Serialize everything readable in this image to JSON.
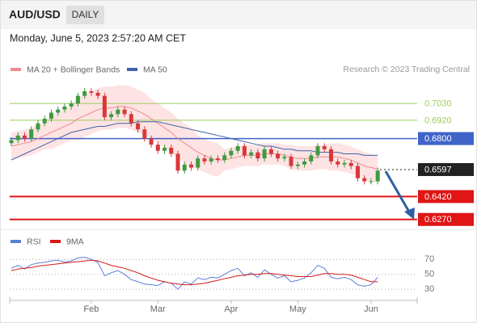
{
  "header": {
    "symbol": "AUD/USD",
    "timeframe": "DAILY",
    "date": "Monday, June 5, 2023 2:57:20 AM CET"
  },
  "chart_data": [
    {
      "type": "candlestick",
      "source": "Research © 2023 Trading Central",
      "ylim": [
        0.62,
        0.72
      ],
      "up_color": "#3f9a3f",
      "down_color": "#d8383a",
      "open": [
        0.677,
        0.679,
        0.682,
        0.68,
        0.686,
        0.69,
        0.693,
        0.697,
        0.699,
        0.701,
        0.703,
        0.708,
        0.711,
        0.71,
        0.708,
        0.694,
        0.696,
        0.699,
        0.696,
        0.69,
        0.686,
        0.68,
        0.676,
        0.672,
        0.674,
        0.67,
        0.659,
        0.663,
        0.661,
        0.667,
        0.665,
        0.667,
        0.666,
        0.669,
        0.672,
        0.675,
        0.669,
        0.671,
        0.667,
        0.673,
        0.67,
        0.667,
        0.668,
        0.662,
        0.663,
        0.665,
        0.669,
        0.675,
        0.673,
        0.665,
        0.663,
        0.664,
        0.662,
        0.654,
        0.652,
        0.652
      ],
      "high": [
        0.681,
        0.684,
        0.684,
        0.688,
        0.692,
        0.695,
        0.699,
        0.701,
        0.703,
        0.705,
        0.71,
        0.713,
        0.713,
        0.712,
        0.71,
        0.698,
        0.701,
        0.701,
        0.698,
        0.692,
        0.688,
        0.682,
        0.678,
        0.676,
        0.676,
        0.672,
        0.665,
        0.665,
        0.669,
        0.669,
        0.669,
        0.669,
        0.671,
        0.674,
        0.677,
        0.677,
        0.673,
        0.673,
        0.675,
        0.675,
        0.672,
        0.67,
        0.67,
        0.665,
        0.667,
        0.671,
        0.677,
        0.677,
        0.675,
        0.667,
        0.666,
        0.666,
        0.664,
        0.656,
        0.654,
        0.661
      ],
      "low": [
        0.675,
        0.677,
        0.678,
        0.678,
        0.684,
        0.688,
        0.691,
        0.695,
        0.697,
        0.699,
        0.701,
        0.706,
        0.708,
        0.706,
        0.692,
        0.692,
        0.694,
        0.694,
        0.688,
        0.684,
        0.678,
        0.674,
        0.67,
        0.67,
        0.668,
        0.657,
        0.657,
        0.659,
        0.659,
        0.663,
        0.663,
        0.664,
        0.664,
        0.667,
        0.67,
        0.667,
        0.667,
        0.665,
        0.665,
        0.668,
        0.665,
        0.665,
        0.66,
        0.66,
        0.661,
        0.663,
        0.667,
        0.671,
        0.663,
        0.661,
        0.661,
        0.66,
        0.652,
        0.65,
        0.65,
        0.65
      ],
      "close": [
        0.679,
        0.682,
        0.68,
        0.686,
        0.69,
        0.693,
        0.697,
        0.699,
        0.701,
        0.703,
        0.708,
        0.711,
        0.71,
        0.708,
        0.694,
        0.696,
        0.699,
        0.696,
        0.69,
        0.686,
        0.68,
        0.676,
        0.672,
        0.674,
        0.67,
        0.659,
        0.663,
        0.661,
        0.667,
        0.665,
        0.667,
        0.666,
        0.669,
        0.672,
        0.675,
        0.669,
        0.671,
        0.667,
        0.673,
        0.67,
        0.667,
        0.668,
        0.662,
        0.663,
        0.665,
        0.669,
        0.675,
        0.673,
        0.665,
        0.663,
        0.664,
        0.662,
        0.654,
        0.652,
        0.652,
        0.659
      ],
      "series": [
        {
          "name": "MA 20 + Bollinger Bands",
          "color": "#f08a8a",
          "band_color": "#fde3e3",
          "values": [
            0.675,
            0.676,
            0.677,
            0.678,
            0.68,
            0.682,
            0.684,
            0.686,
            0.688,
            0.69,
            0.693,
            0.695,
            0.697,
            0.699,
            0.7,
            0.7,
            0.701,
            0.701,
            0.7,
            0.698,
            0.696,
            0.693,
            0.69,
            0.687,
            0.684,
            0.68,
            0.677,
            0.674,
            0.671,
            0.669,
            0.667,
            0.666,
            0.666,
            0.667,
            0.668,
            0.669,
            0.669,
            0.669,
            0.67,
            0.67,
            0.67,
            0.669,
            0.668,
            0.667,
            0.667,
            0.667,
            0.668,
            0.668,
            0.668,
            0.668,
            0.667,
            0.666,
            0.664,
            0.662,
            0.661,
            0.66
          ],
          "upper": [
            0.684,
            0.685,
            0.686,
            0.687,
            0.689,
            0.691,
            0.695,
            0.697,
            0.699,
            0.701,
            0.707,
            0.709,
            0.711,
            0.713,
            0.714,
            0.714,
            0.715,
            0.715,
            0.714,
            0.712,
            0.71,
            0.706,
            0.703,
            0.7,
            0.697,
            0.693,
            0.69,
            0.687,
            0.682,
            0.68,
            0.678,
            0.677,
            0.673,
            0.674,
            0.675,
            0.676,
            0.676,
            0.676,
            0.677,
            0.677,
            0.677,
            0.676,
            0.676,
            0.675,
            0.675,
            0.675,
            0.676,
            0.676,
            0.677,
            0.677,
            0.676,
            0.675,
            0.673,
            0.671,
            0.67,
            0.669
          ],
          "lower": [
            0.666,
            0.667,
            0.668,
            0.669,
            0.671,
            0.673,
            0.673,
            0.675,
            0.677,
            0.679,
            0.679,
            0.681,
            0.683,
            0.685,
            0.686,
            0.686,
            0.687,
            0.687,
            0.686,
            0.684,
            0.682,
            0.68,
            0.677,
            0.674,
            0.671,
            0.667,
            0.664,
            0.661,
            0.66,
            0.658,
            0.656,
            0.655,
            0.659,
            0.66,
            0.661,
            0.662,
            0.662,
            0.662,
            0.663,
            0.663,
            0.663,
            0.662,
            0.66,
            0.659,
            0.659,
            0.659,
            0.66,
            0.66,
            0.659,
            0.659,
            0.658,
            0.657,
            0.655,
            0.653,
            0.652,
            0.651
          ]
        },
        {
          "name": "MA 50",
          "color": "#3f63a8",
          "values": [
            0.666,
            0.668,
            0.67,
            0.672,
            0.674,
            0.676,
            0.678,
            0.68,
            0.682,
            0.684,
            0.685,
            0.686,
            0.687,
            0.688,
            0.688,
            0.689,
            0.69,
            0.69,
            0.69,
            0.691,
            0.691,
            0.691,
            0.691,
            0.69,
            0.689,
            0.688,
            0.687,
            0.686,
            0.685,
            0.684,
            0.683,
            0.682,
            0.681,
            0.68,
            0.679,
            0.678,
            0.677,
            0.676,
            0.675,
            0.675,
            0.674,
            0.673,
            0.673,
            0.672,
            0.672,
            0.672,
            0.671,
            0.671,
            0.671,
            0.671,
            0.67,
            0.67,
            0.67,
            0.669,
            0.669,
            0.669
          ]
        }
      ],
      "levels": [
        {
          "value": 0.703,
          "label": "0.7030",
          "color": "#9acd5a",
          "line": "thin",
          "label_style": "text"
        },
        {
          "value": 0.692,
          "label": "0.6920",
          "color": "#9acd5a",
          "line": "thin",
          "label_style": "text"
        },
        {
          "value": 0.68,
          "label": "0.6800",
          "color": "#3f63c8",
          "line": "solid",
          "label_style": "tag"
        },
        {
          "value": 0.6597,
          "label": "0.6597",
          "color": "#222222",
          "line": "dotted",
          "label_style": "tag"
        },
        {
          "value": 0.642,
          "label": "0.6420",
          "color": "#e01515",
          "line": "thick",
          "label_style": "tag"
        },
        {
          "value": 0.627,
          "label": "0.6270",
          "color": "#e01515",
          "line": "thick",
          "label_style": "tag"
        }
      ]
    },
    {
      "type": "line",
      "categories": [
        null,
        null,
        null,
        null,
        null,
        null,
        null,
        null,
        null,
        null,
        null,
        null,
        "Feb",
        null,
        null,
        null,
        null,
        null,
        null,
        null,
        null,
        null,
        "Mar",
        null,
        null,
        null,
        null,
        null,
        null,
        null,
        null,
        null,
        null,
        "Apr",
        null,
        null,
        null,
        null,
        null,
        null,
        null,
        null,
        null,
        "May",
        null,
        null,
        null,
        null,
        null,
        null,
        null,
        null,
        null,
        null,
        "Jun",
        null
      ],
      "ylim": [
        15,
        80
      ],
      "yticks": [
        30,
        50,
        70
      ],
      "series": [
        {
          "name": "RSI",
          "color": "#5b7fd6",
          "values": [
            58,
            62,
            57,
            63,
            65,
            66,
            68,
            69,
            66,
            68,
            72,
            73,
            70,
            66,
            48,
            52,
            55,
            50,
            43,
            40,
            37,
            36,
            35,
            40,
            38,
            30,
            40,
            37,
            45,
            43,
            46,
            45,
            50,
            55,
            58,
            48,
            52,
            46,
            56,
            50,
            45,
            48,
            40,
            42,
            45,
            52,
            62,
            58,
            46,
            44,
            46,
            43,
            36,
            34,
            36,
            46
          ]
        },
        {
          "name": "9MA",
          "color": "#d81818",
          "values": [
            55,
            57,
            58,
            59,
            61,
            62,
            63,
            64,
            65,
            66,
            67,
            68,
            69,
            68,
            65,
            62,
            60,
            58,
            55,
            52,
            48,
            45,
            42,
            40,
            38,
            37,
            36,
            36,
            37,
            38,
            40,
            42,
            44,
            46,
            48,
            49,
            50,
            50,
            51,
            51,
            50,
            49,
            48,
            47,
            47,
            47,
            49,
            51,
            51,
            50,
            50,
            49,
            46,
            43,
            40,
            40
          ]
        }
      ]
    }
  ]
}
